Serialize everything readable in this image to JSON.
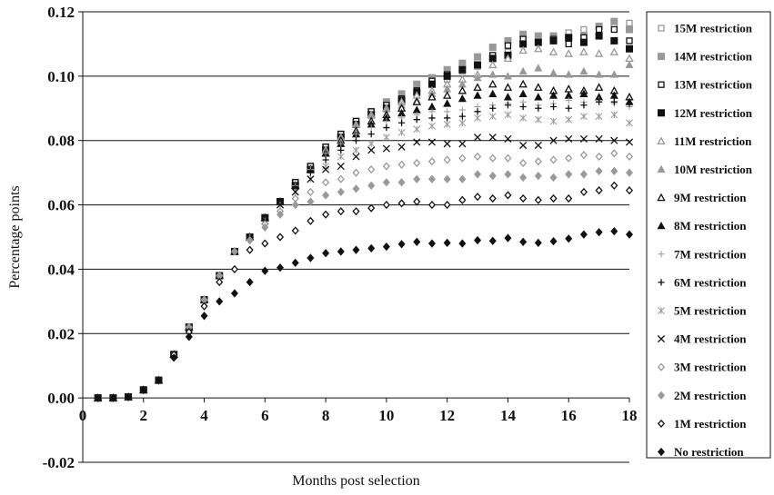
{
  "chart_data": {
    "type": "scatter",
    "title": "",
    "xlabel": "Months post selection",
    "ylabel": "Percentage points",
    "xlim": [
      0,
      18
    ],
    "ylim": [
      -0.02,
      0.12
    ],
    "xticks": [
      "0",
      "2",
      "4",
      "6",
      "8",
      "10",
      "12",
      "14",
      "16",
      "18"
    ],
    "yticks": [
      "-0.02",
      "0.00",
      "0.02",
      "0.04",
      "0.06",
      "0.08",
      "0.10",
      "0.12"
    ],
    "grid": "horizontal",
    "legend_position": "right",
    "x": [
      0.5,
      1,
      1.5,
      2,
      2.5,
      3,
      3.5,
      4,
      4.5,
      5,
      5.5,
      6,
      6.5,
      7,
      7.5,
      8,
      8.5,
      9,
      9.5,
      10,
      10.5,
      11,
      11.5,
      12,
      12.5,
      13,
      13.5,
      14,
      14.5,
      15,
      15.5,
      16,
      16.5,
      17,
      17.5,
      18
    ],
    "series": [
      {
        "name": "15M restriction",
        "marker": "square-open",
        "color": "#999999",
        "values": [
          0,
          0,
          0.0003,
          0.0025,
          0.0055,
          0.0135,
          0.022,
          0.0305,
          0.038,
          0.0455,
          0.05,
          0.056,
          0.061,
          0.067,
          0.072,
          0.078,
          0.082,
          0.086,
          0.089,
          0.091,
          0.093,
          0.0955,
          0.0975,
          0.099,
          0.1015,
          0.103,
          0.1055,
          0.1075,
          0.111,
          0.1115,
          0.1125,
          0.1135,
          0.1145,
          0.115,
          0.1155,
          0.1165
        ]
      },
      {
        "name": "14M restriction",
        "marker": "square",
        "color": "#999999",
        "values": [
          0,
          0,
          0.0003,
          0.0025,
          0.0055,
          0.0135,
          0.022,
          0.0305,
          0.038,
          0.0455,
          0.05,
          0.056,
          0.061,
          0.067,
          0.072,
          0.078,
          0.082,
          0.086,
          0.089,
          0.092,
          0.0945,
          0.0975,
          0.0995,
          0.102,
          0.104,
          0.106,
          0.109,
          0.111,
          0.113,
          0.1125,
          0.1125,
          0.112,
          0.1125,
          0.1155,
          0.117,
          0.1145
        ]
      },
      {
        "name": "13M restriction",
        "marker": "square-open",
        "color": "#111111",
        "values": [
          0,
          0,
          0.0003,
          0.0025,
          0.0055,
          0.0135,
          0.022,
          0.0305,
          0.038,
          0.0455,
          0.05,
          0.056,
          0.061,
          0.067,
          0.072,
          0.078,
          0.082,
          0.086,
          0.089,
          0.091,
          0.093,
          0.0955,
          0.0985,
          0.1005,
          0.102,
          0.1035,
          0.1065,
          0.1095,
          0.1115,
          0.1105,
          0.1115,
          0.11,
          0.112,
          0.1145,
          0.1145,
          0.111
        ]
      },
      {
        "name": "12M restriction",
        "marker": "square",
        "color": "#111111",
        "values": [
          0,
          0,
          0.0003,
          0.0025,
          0.0055,
          0.0135,
          0.022,
          0.0305,
          0.038,
          0.0455,
          0.05,
          0.056,
          0.061,
          0.066,
          0.071,
          0.077,
          0.081,
          0.085,
          0.088,
          0.09,
          0.0925,
          0.095,
          0.0975,
          0.1,
          0.102,
          0.1035,
          0.1055,
          0.1065,
          0.11,
          0.1105,
          0.111,
          0.112,
          0.1105,
          0.1125,
          0.111,
          0.1085
        ]
      },
      {
        "name": "11M restriction",
        "marker": "triangle-open",
        "color": "#999999",
        "values": [
          0,
          0,
          0.0003,
          0.0025,
          0.0055,
          0.0135,
          0.022,
          0.0305,
          0.038,
          0.0455,
          0.05,
          0.056,
          0.061,
          0.066,
          0.071,
          0.077,
          0.081,
          0.085,
          0.088,
          0.09,
          0.092,
          0.094,
          0.0955,
          0.0975,
          0.099,
          0.1005,
          0.1035,
          0.1055,
          0.108,
          0.1085,
          0.1075,
          0.107,
          0.1075,
          0.107,
          0.1075,
          0.1055
        ]
      },
      {
        "name": "10M restriction",
        "marker": "triangle",
        "color": "#999999",
        "values": [
          0,
          0,
          0.0003,
          0.0025,
          0.0055,
          0.0135,
          0.022,
          0.0305,
          0.038,
          0.0455,
          0.05,
          0.056,
          0.061,
          0.066,
          0.071,
          0.077,
          0.081,
          0.085,
          0.088,
          0.09,
          0.091,
          0.0925,
          0.0945,
          0.096,
          0.0975,
          0.0995,
          0.1005,
          0.1,
          0.1015,
          0.1025,
          0.101,
          0.1005,
          0.1015,
          0.1005,
          0.1005,
          0.1035
        ]
      },
      {
        "name": "9M restriction",
        "marker": "triangle-open",
        "color": "#111111",
        "values": [
          0,
          0,
          0.0003,
          0.0025,
          0.0055,
          0.0135,
          0.022,
          0.0305,
          0.038,
          0.0455,
          0.05,
          0.056,
          0.061,
          0.066,
          0.071,
          0.076,
          0.08,
          0.083,
          0.086,
          0.088,
          0.09,
          0.092,
          0.0935,
          0.094,
          0.0955,
          0.0965,
          0.0975,
          0.0965,
          0.0975,
          0.0965,
          0.0955,
          0.096,
          0.0955,
          0.0965,
          0.0955,
          0.0935
        ]
      },
      {
        "name": "8M restriction",
        "marker": "triangle",
        "color": "#111111",
        "values": [
          0,
          0,
          0.0003,
          0.0025,
          0.0055,
          0.0135,
          0.022,
          0.0305,
          0.038,
          0.0455,
          0.05,
          0.056,
          0.061,
          0.066,
          0.071,
          0.076,
          0.079,
          0.082,
          0.085,
          0.087,
          0.0885,
          0.0895,
          0.0905,
          0.0915,
          0.093,
          0.094,
          0.0945,
          0.0935,
          0.0945,
          0.0935,
          0.094,
          0.094,
          0.0945,
          0.0935,
          0.094,
          0.092
        ]
      },
      {
        "name": "7M restriction",
        "marker": "plus-thin",
        "color": "#999999",
        "values": [
          0,
          0,
          0.0003,
          0.0025,
          0.0055,
          0.0135,
          0.022,
          0.0305,
          0.038,
          0.0455,
          0.05,
          0.056,
          0.061,
          0.066,
          0.071,
          0.076,
          0.079,
          0.082,
          0.084,
          0.086,
          0.087,
          0.088,
          0.089,
          0.089,
          0.0895,
          0.0905,
          0.091,
          0.0915,
          0.092,
          0.091,
          0.0915,
          0.0925,
          0.092,
          0.0925,
          0.0915,
          0.0905
        ]
      },
      {
        "name": "6M restriction",
        "marker": "plus",
        "color": "#111111",
        "values": [
          0,
          0,
          0.0003,
          0.0025,
          0.0055,
          0.0135,
          0.022,
          0.0305,
          0.038,
          0.0455,
          0.05,
          0.056,
          0.061,
          0.065,
          0.07,
          0.074,
          0.077,
          0.08,
          0.082,
          0.084,
          0.0855,
          0.0865,
          0.087,
          0.087,
          0.0875,
          0.089,
          0.09,
          0.091,
          0.0905,
          0.09,
          0.0905,
          0.09,
          0.091,
          0.092,
          0.092,
          0.0915
        ]
      },
      {
        "name": "5M restriction",
        "marker": "star",
        "color": "#999999",
        "values": [
          0,
          0,
          0.0003,
          0.0025,
          0.0055,
          0.0135,
          0.022,
          0.0305,
          0.038,
          0.0455,
          0.05,
          0.055,
          0.06,
          0.064,
          0.068,
          0.072,
          0.075,
          0.077,
          0.079,
          0.081,
          0.0825,
          0.0835,
          0.0845,
          0.085,
          0.0855,
          0.087,
          0.0875,
          0.088,
          0.087,
          0.0865,
          0.086,
          0.0865,
          0.0875,
          0.0875,
          0.088,
          0.0855
        ]
      },
      {
        "name": "4M restriction",
        "marker": "asterisk",
        "color": "#111111",
        "values": [
          0,
          0,
          0.0003,
          0.0025,
          0.0055,
          0.0135,
          0.022,
          0.0305,
          0.038,
          0.0455,
          0.05,
          0.055,
          0.06,
          0.064,
          0.068,
          0.071,
          0.072,
          0.075,
          0.077,
          0.0775,
          0.078,
          0.0795,
          0.0795,
          0.079,
          0.079,
          0.081,
          0.081,
          0.0805,
          0.0785,
          0.0785,
          0.08,
          0.0805,
          0.0805,
          0.0805,
          0.08,
          0.0795
        ]
      },
      {
        "name": "3M restriction",
        "marker": "diamond-open",
        "color": "#999999",
        "values": [
          0,
          0,
          0.0003,
          0.0025,
          0.0055,
          0.0135,
          0.022,
          0.0305,
          0.038,
          0.0455,
          0.049,
          0.054,
          0.058,
          0.062,
          0.064,
          0.067,
          0.068,
          0.07,
          0.071,
          0.072,
          0.0725,
          0.073,
          0.0735,
          0.074,
          0.0745,
          0.075,
          0.0745,
          0.0745,
          0.073,
          0.0735,
          0.074,
          0.0745,
          0.0755,
          0.075,
          0.076,
          0.075
        ]
      },
      {
        "name": "2M restriction",
        "marker": "diamond",
        "color": "#999999",
        "values": [
          0,
          0,
          0.0003,
          0.0025,
          0.0055,
          0.0135,
          0.022,
          0.0305,
          0.038,
          0.0455,
          0.049,
          0.053,
          0.057,
          0.06,
          0.061,
          0.063,
          0.064,
          0.065,
          0.066,
          0.067,
          0.067,
          0.068,
          0.068,
          0.068,
          0.068,
          0.0695,
          0.069,
          0.0695,
          0.0685,
          0.069,
          0.0685,
          0.0695,
          0.0695,
          0.0705,
          0.0705,
          0.07
        ]
      },
      {
        "name": "1M restriction",
        "marker": "diamond-open",
        "color": "#111111",
        "values": [
          0,
          0,
          0.0003,
          0.0025,
          0.0055,
          0.0135,
          0.0205,
          0.0285,
          0.036,
          0.04,
          0.046,
          0.048,
          0.05,
          0.052,
          0.055,
          0.057,
          0.058,
          0.058,
          0.059,
          0.06,
          0.0605,
          0.061,
          0.06,
          0.06,
          0.0615,
          0.0625,
          0.062,
          0.063,
          0.062,
          0.0615,
          0.062,
          0.062,
          0.064,
          0.0645,
          0.066,
          0.0645
        ]
      },
      {
        "name": "No restriction",
        "marker": "diamond",
        "color": "#111111",
        "values": [
          0,
          0,
          0.0003,
          0.0025,
          0.0055,
          0.0125,
          0.019,
          0.0255,
          0.03,
          0.0325,
          0.036,
          0.0395,
          0.0405,
          0.042,
          0.0435,
          0.045,
          0.0455,
          0.046,
          0.0465,
          0.047,
          0.0478,
          0.0485,
          0.048,
          0.0482,
          0.048,
          0.049,
          0.0488,
          0.0497,
          0.0485,
          0.0482,
          0.0487,
          0.0495,
          0.0508,
          0.0515,
          0.0518,
          0.0508
        ]
      }
    ]
  }
}
